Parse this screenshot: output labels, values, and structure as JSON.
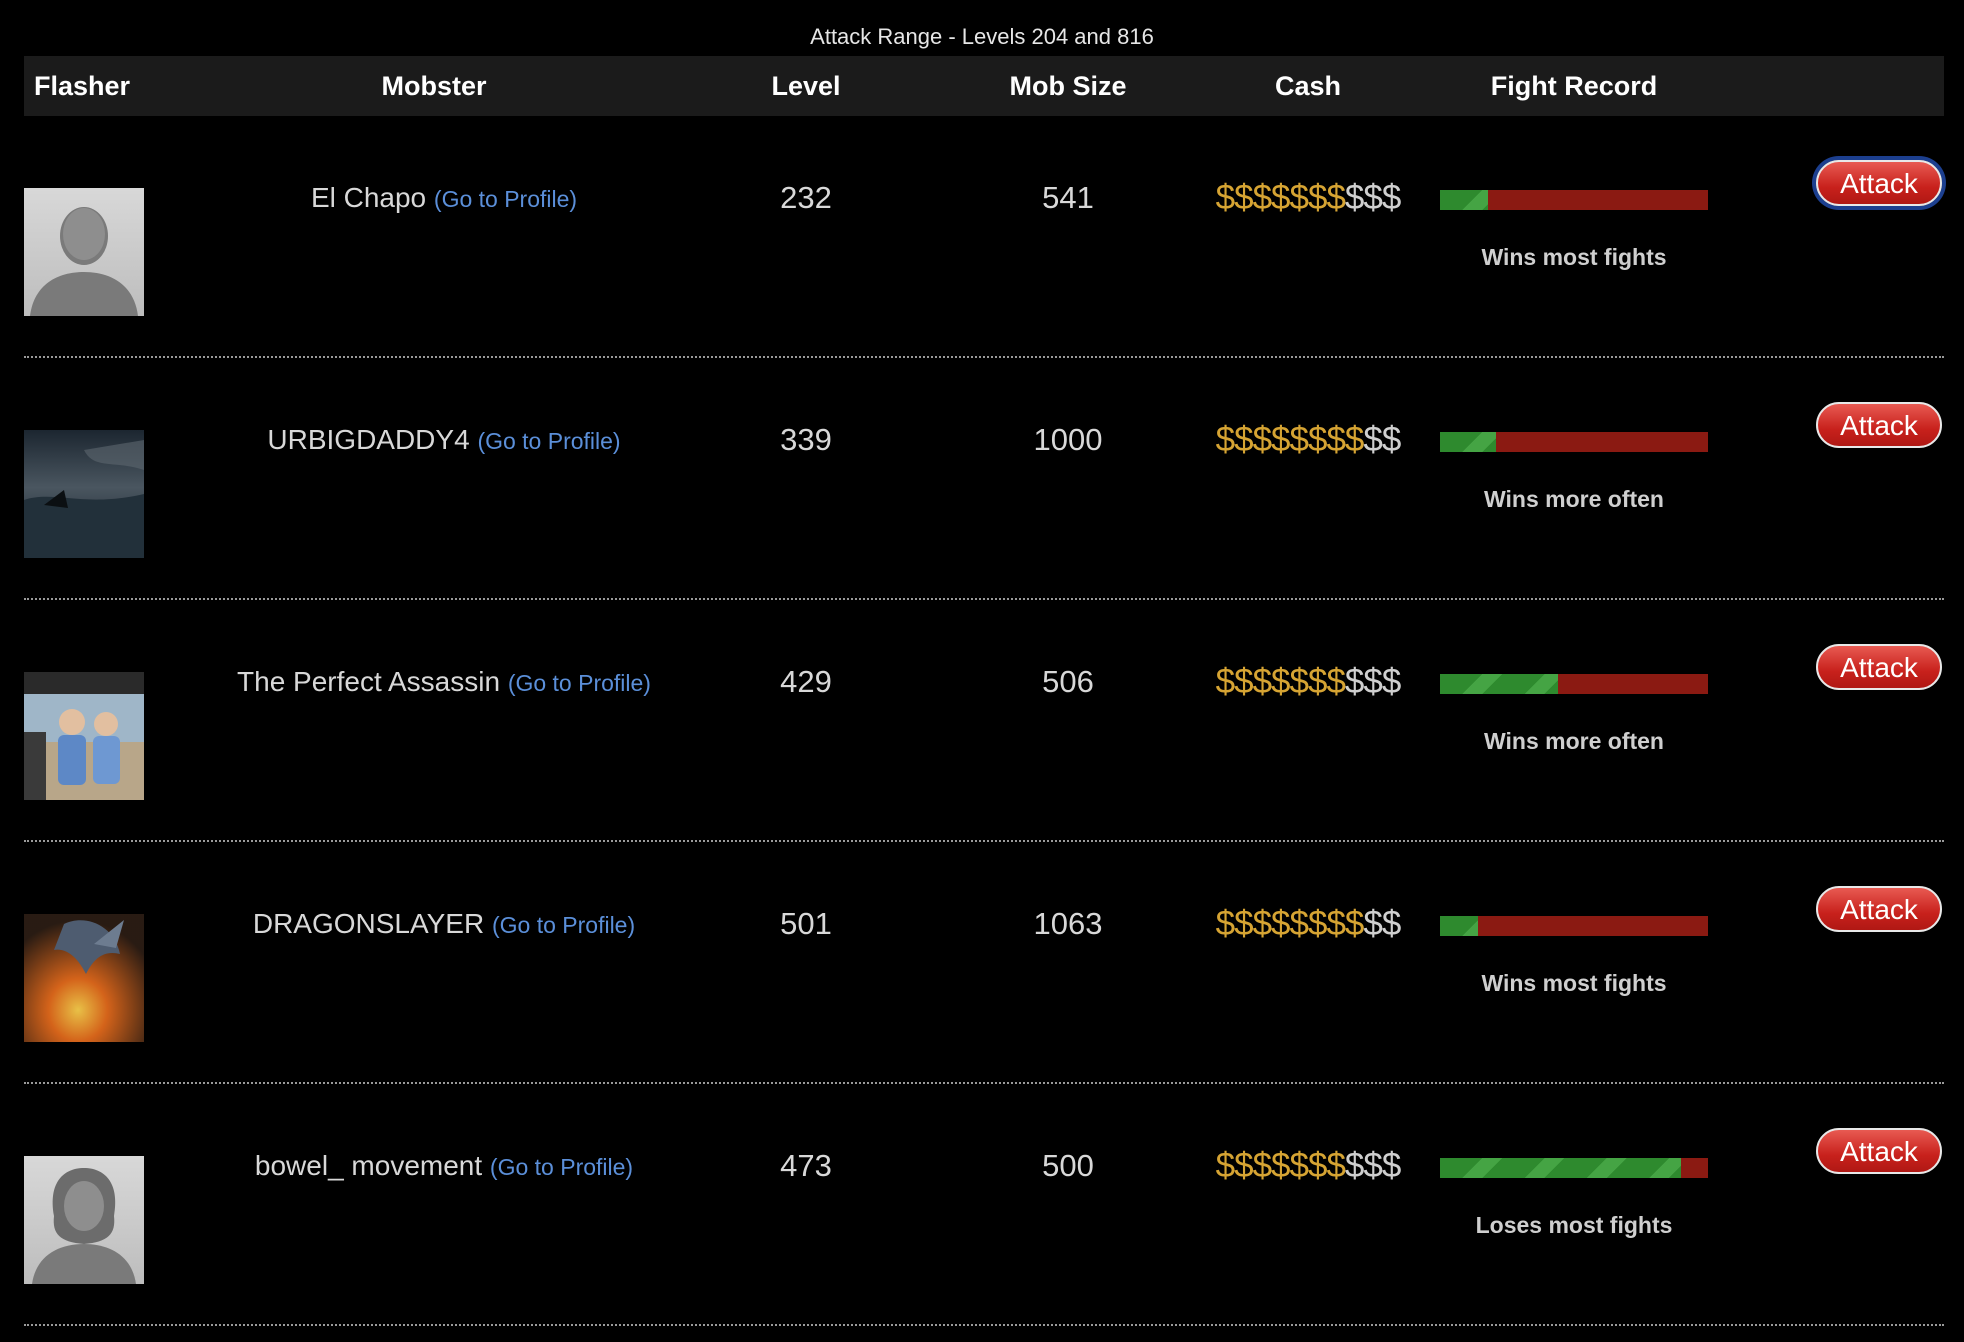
{
  "caption": "Attack Range - Levels 204 and 816",
  "headers": {
    "flasher": "Flasher",
    "mobster": "Mobster",
    "level": "Level",
    "mob_size": "Mob Size",
    "cash": "Cash",
    "fight_record": "Fight Record"
  },
  "colors": {
    "cash_gold": "#d6a433",
    "cash_gray": "#cfcfcf",
    "win_green": "#2e8a2e",
    "loss_red": "#8b1a12",
    "link_blue": "#5b8fd9",
    "attack_red": "#c8211c"
  },
  "rows": [
    {
      "avatar": "default-silhouette-male",
      "name": "El Chapo",
      "profile_link": "(Go to Profile)",
      "level": "232",
      "mob_size": "541",
      "cash_gold": "$$$$$$$",
      "cash_gray": "$$$",
      "win_fraction": 0.18,
      "fight_label": "Wins most fights",
      "attack_label": "Attack"
    },
    {
      "avatar": "stormy-sea-photo",
      "name": "URBIGDADDY4",
      "profile_link": "(Go to Profile)",
      "level": "339",
      "mob_size": "1000",
      "cash_gold": "$$$$$$$$",
      "cash_gray": "$$",
      "win_fraction": 0.21,
      "fight_label": "Wins more often",
      "attack_label": "Attack"
    },
    {
      "avatar": "two-kids-photo",
      "name": "The Perfect Assassin",
      "profile_link": "(Go to Profile)",
      "level": "429",
      "mob_size": "506",
      "cash_gold": "$$$$$$$",
      "cash_gray": "$$$",
      "win_fraction": 0.44,
      "fight_label": "Wins more often",
      "attack_label": "Attack"
    },
    {
      "avatar": "fire-dragon-image",
      "name": "DRAGONSLAYER",
      "profile_link": "(Go to Profile)",
      "level": "501",
      "mob_size": "1063",
      "cash_gold": "$$$$$$$$",
      "cash_gray": "$$",
      "win_fraction": 0.14,
      "fight_label": "Wins most fights",
      "attack_label": "Attack"
    },
    {
      "avatar": "default-silhouette-female",
      "name": "bowel_ movement",
      "profile_link": "(Go to Profile)",
      "level": "473",
      "mob_size": "500",
      "cash_gold": "$$$$$$$",
      "cash_gray": "$$$",
      "win_fraction": 0.9,
      "fight_label": "Loses most fights",
      "attack_label": "Attack"
    }
  ]
}
